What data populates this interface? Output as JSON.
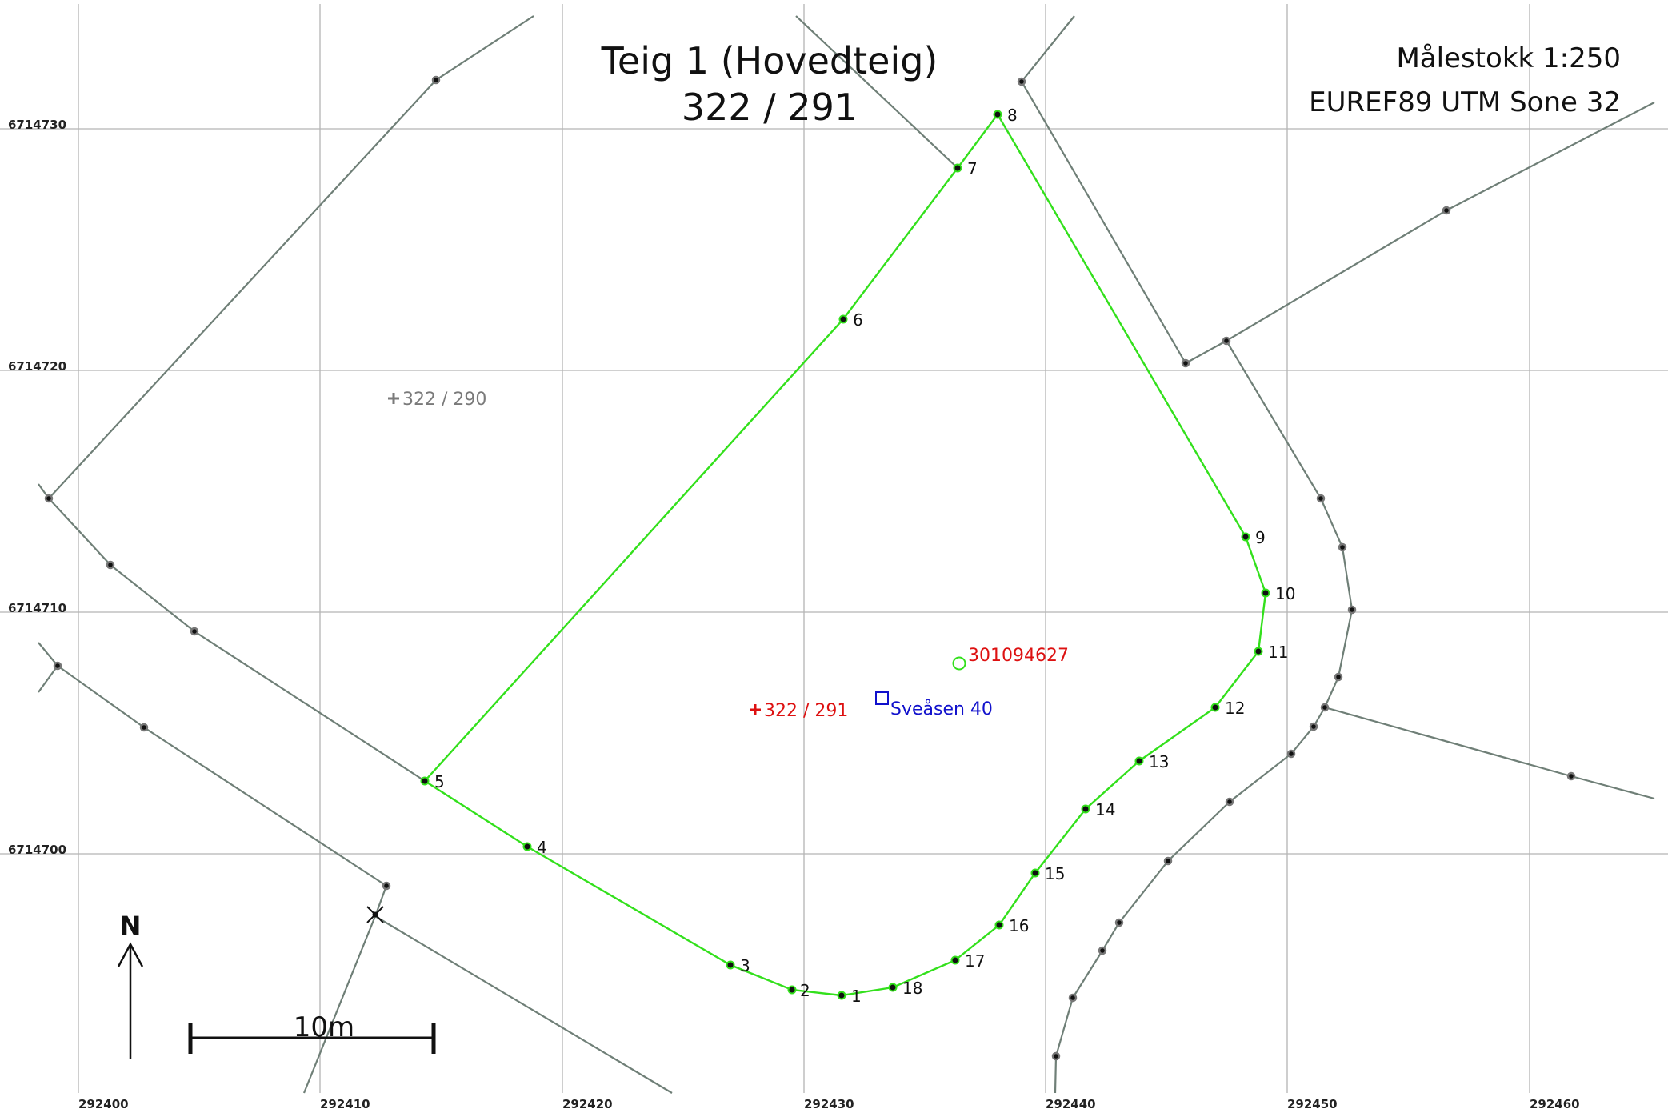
{
  "title": {
    "name": "Teig 1 (Hovedteig)",
    "id": "322  /  291"
  },
  "info": {
    "scale": "Målestokk 1:250",
    "crs": "EUREF89 UTM Sone 32"
  },
  "axes": {
    "x_ticks": [
      "292400",
      "292410",
      "292420",
      "292430",
      "292440",
      "292450",
      "292460"
    ],
    "y_ticks": [
      "6714730",
      "6714720",
      "6714710",
      "6714700"
    ]
  },
  "labels": {
    "neighbor_parcel": "322 / 290",
    "main_parcel": "322 / 291",
    "building": "301094627",
    "address": "Sveåsen 40"
  },
  "north_arrow": "N",
  "scalebar": "10m",
  "boundary_points": [
    "1",
    "2",
    "3",
    "4",
    "5",
    "6",
    "7",
    "8",
    "9",
    "10",
    "11",
    "12",
    "13",
    "14",
    "15",
    "16",
    "17",
    "18"
  ],
  "colors": {
    "parcel_boundary": "#33e01c",
    "neighbor_boundary": "#6f7f77",
    "main_parcel_label": "#dd1111",
    "neighbor_parcel_label": "#7a7a7a",
    "building_label": "#dd1111",
    "building_marker": "#33e01c",
    "address_label": "#1111cc",
    "grid": "#b4b4b4"
  },
  "icons": {
    "north_arrow": "arrow-up-icon",
    "building": "circle-marker-icon",
    "address": "square-marker-icon",
    "parcel_centroid": "plus-marker-icon"
  }
}
